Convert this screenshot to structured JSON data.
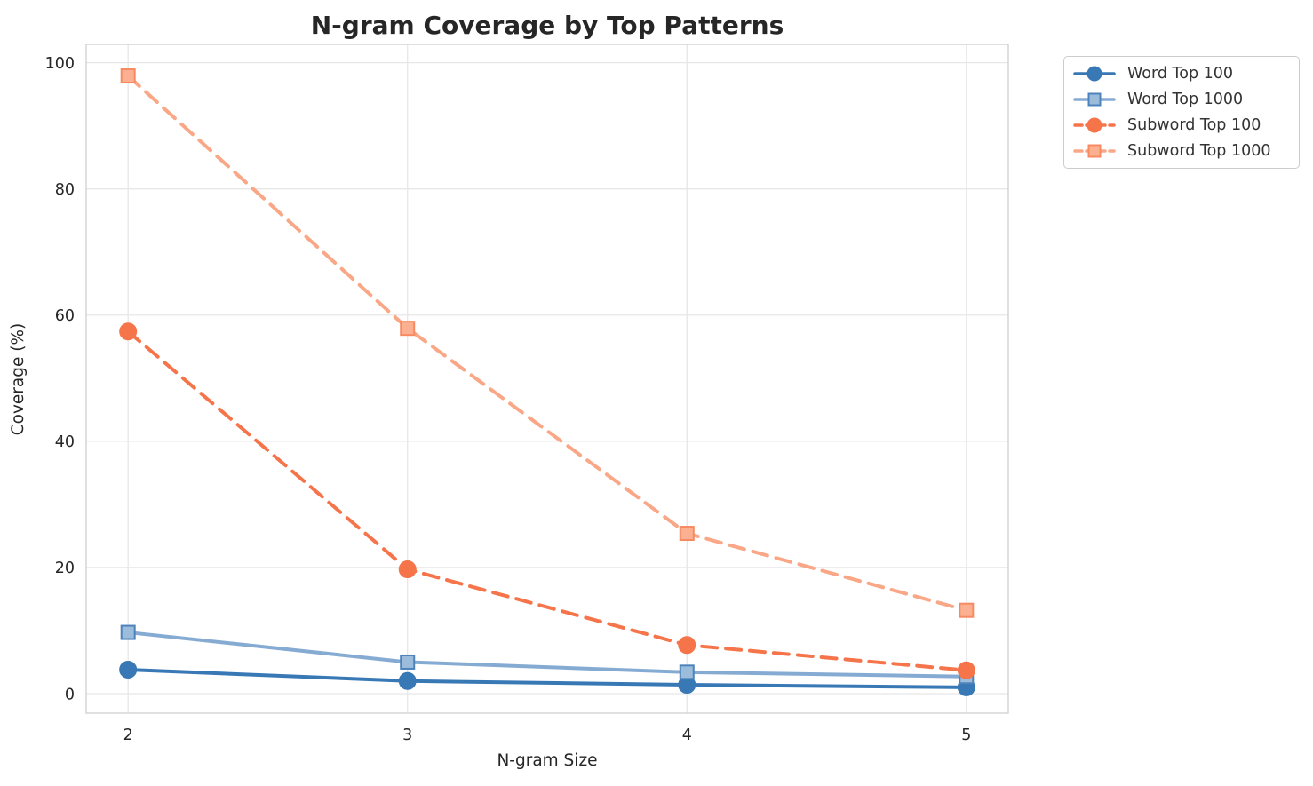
{
  "chart_data": {
    "type": "line",
    "title": "N-gram Coverage by Top Patterns",
    "xlabel": "N-gram Size",
    "ylabel": "Coverage (%)",
    "x": [
      2,
      3,
      4,
      5
    ],
    "xticks": [
      "2",
      "3",
      "4",
      "5"
    ],
    "yticks": [
      "0",
      "20",
      "40",
      "60",
      "80",
      "100"
    ],
    "xlim": [
      1.85,
      5.15
    ],
    "ylim": [
      -3.1,
      102.9
    ],
    "grid": true,
    "legend_position": "outside-upper-right",
    "series": [
      {
        "name": "Word Top 100",
        "values": [
          3.8,
          2.0,
          1.4,
          1.0
        ],
        "color": "#3878b4",
        "marker": "circle",
        "marker_face": "#3878b4",
        "marker_edge": "#3878b4",
        "linestyle": "solid"
      },
      {
        "name": "Word Top 1000",
        "values": [
          9.7,
          5.0,
          3.4,
          2.7
        ],
        "color": "#85abd3",
        "marker": "square",
        "marker_face": "#9cbcdc",
        "marker_edge": "#4d83ba",
        "linestyle": "solid"
      },
      {
        "name": "Subword Top 100",
        "values": [
          57.4,
          19.7,
          7.7,
          3.7
        ],
        "color": "#f6744a",
        "marker": "circle",
        "marker_face": "#f6744a",
        "marker_edge": "#f6744a",
        "linestyle": "dashed"
      },
      {
        "name": "Subword Top 1000",
        "values": [
          97.9,
          57.9,
          25.4,
          13.2
        ],
        "color": "#f9a786",
        "marker": "square",
        "marker_face": "#fbb092",
        "marker_edge": "#f78a61",
        "linestyle": "dashed"
      }
    ]
  },
  "style": {
    "background": "#ffffff",
    "grid_color": "#e7e7e7",
    "spine_color": "#cfcfcf",
    "title_color": "#262626",
    "tick_color": "#262626",
    "label_color": "#262626",
    "legend_border": "#cccccc",
    "legend_text": "#333333"
  }
}
